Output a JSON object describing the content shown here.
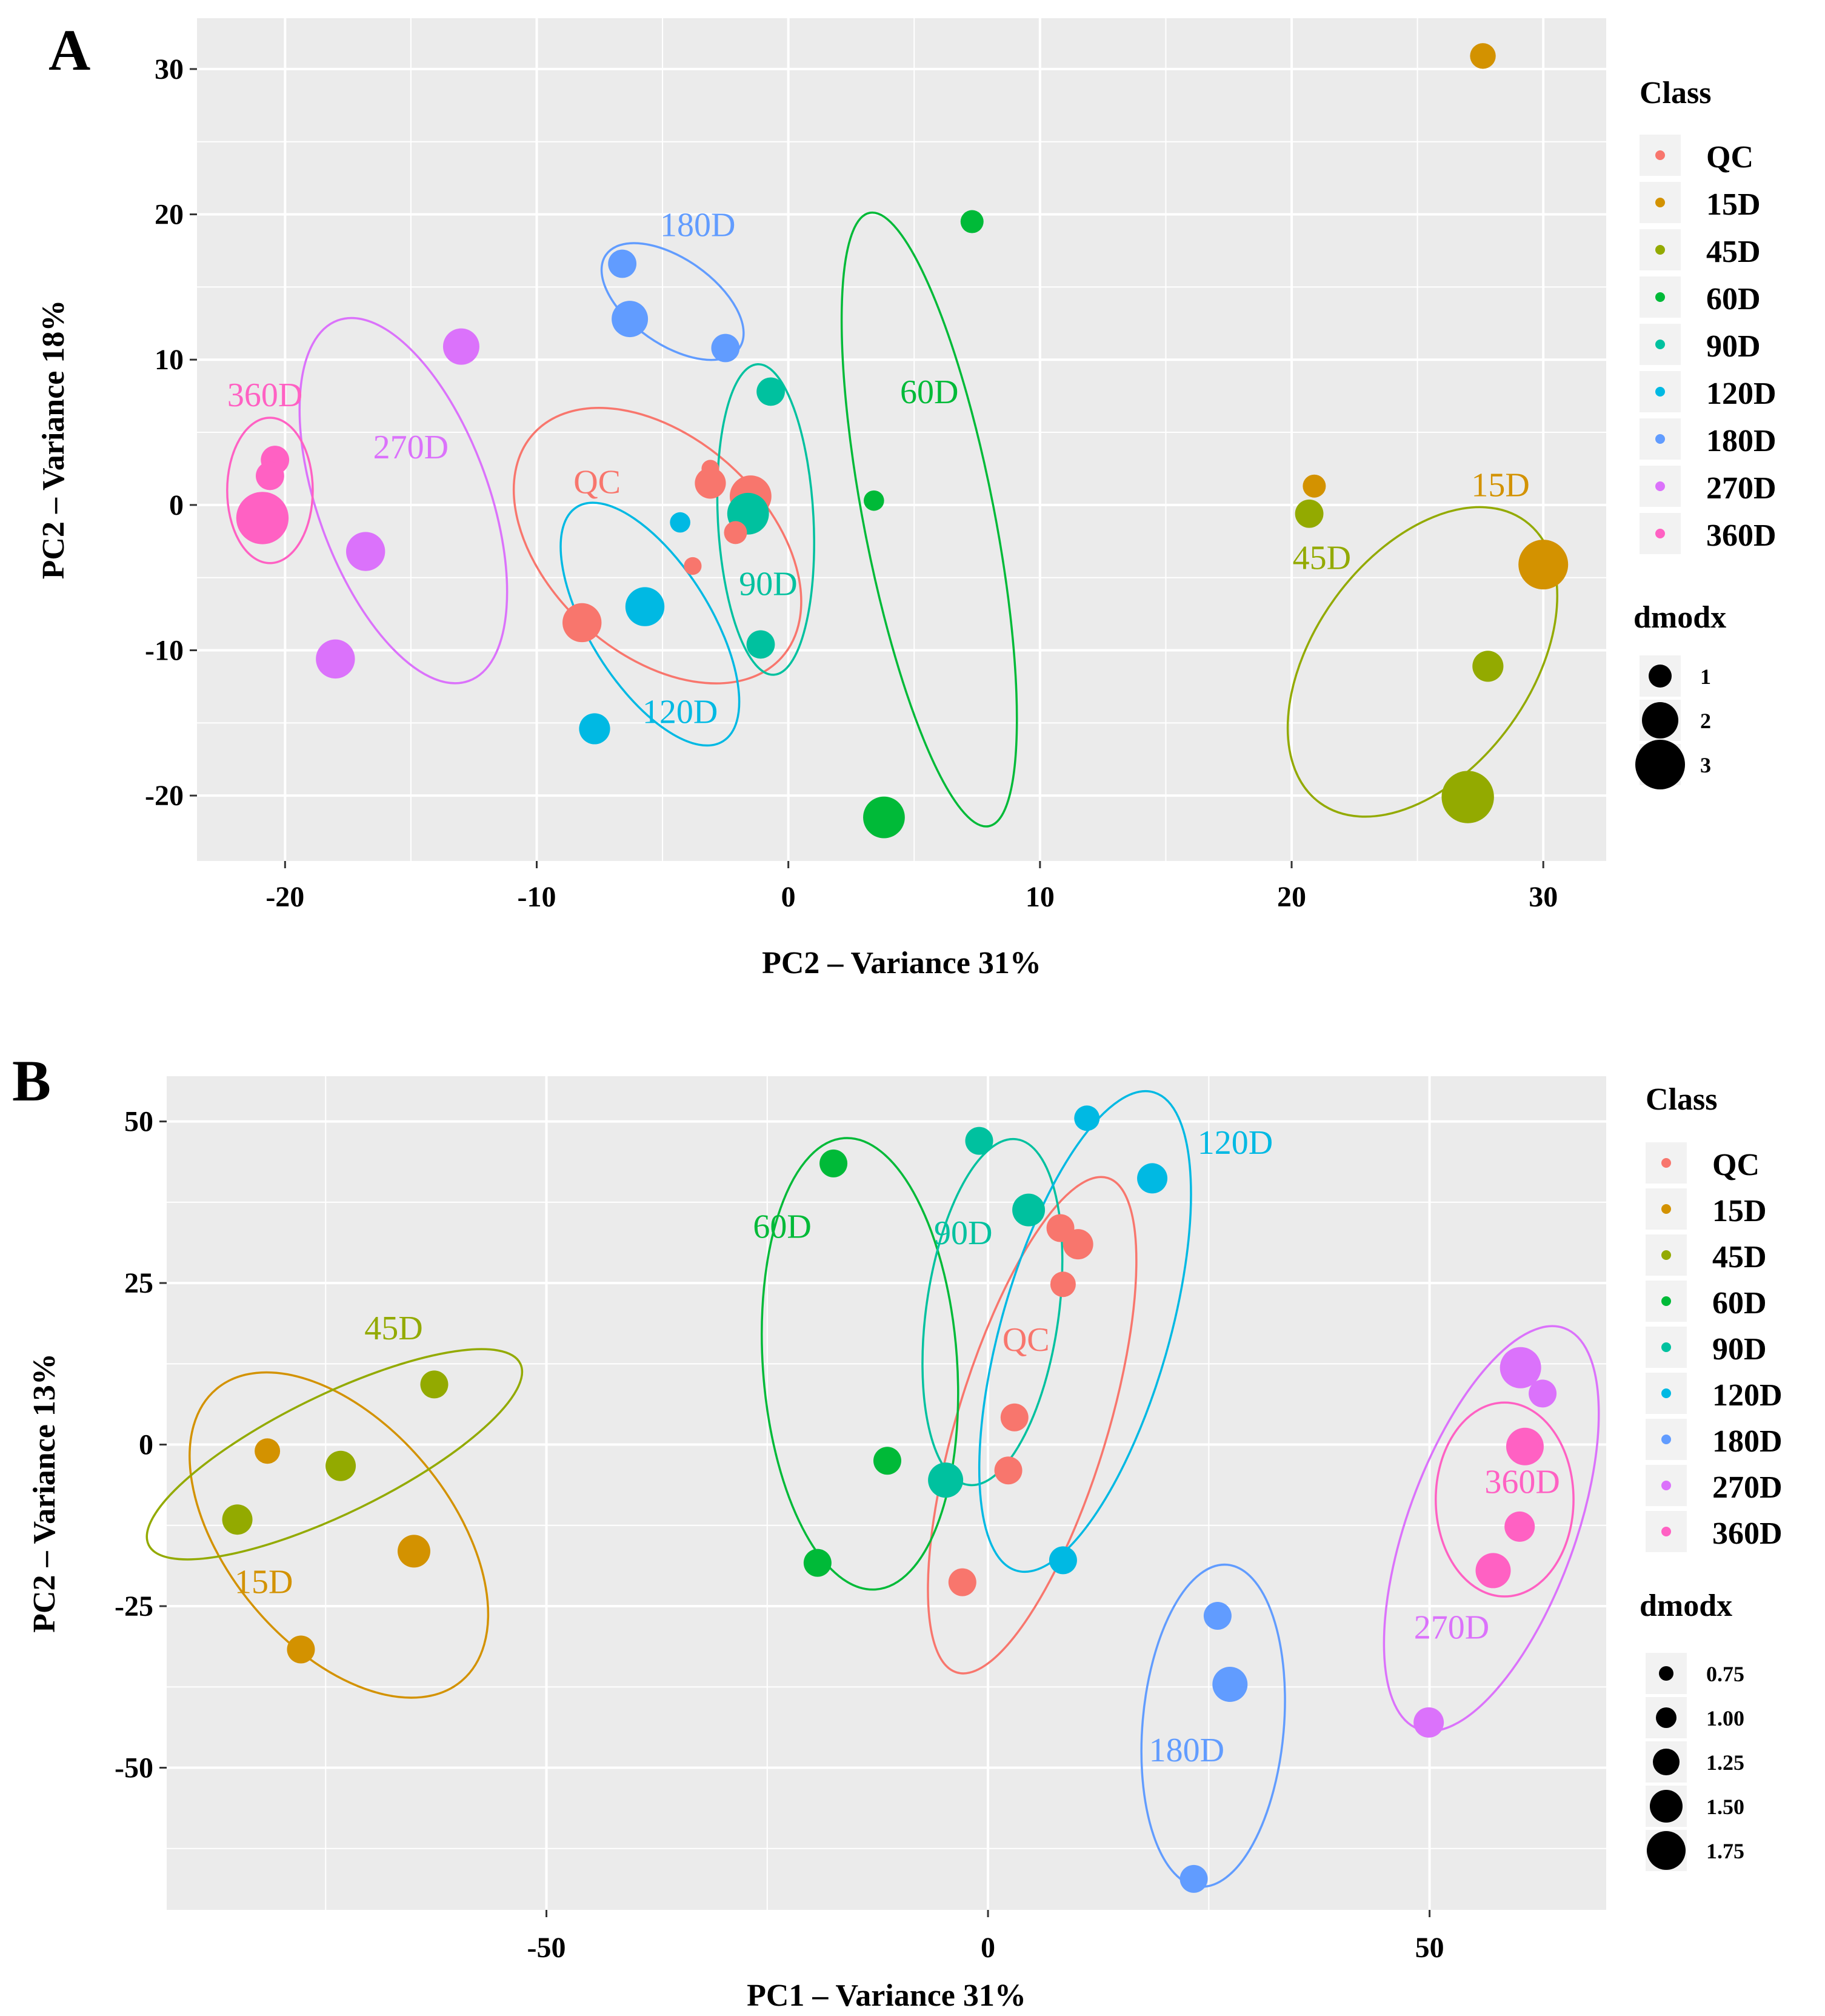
{
  "colors": {
    "QC": "#F8766D",
    "15D": "#D39200",
    "45D": "#93AA00",
    "60D": "#00BA38",
    "90D": "#00C19F",
    "120D": "#00B9E3",
    "180D": "#619CFF",
    "270D": "#DB72FB",
    "360D": "#FF61C3",
    "panel_bg": "#EBEBEB",
    "grid": "#FFFFFF"
  },
  "chart_data": [
    {
      "panel": "A",
      "type": "scatter",
      "xlabel": "PC2 – Variance 31%",
      "ylabel": "PC2 – Variance 18%",
      "xlim": [
        -23.5,
        32.5
      ],
      "ylim": [
        -24.5,
        33.5
      ],
      "xticks": [
        -20,
        -10,
        0,
        10,
        20,
        30
      ],
      "yticks": [
        -20,
        -10,
        0,
        10,
        20,
        30
      ],
      "xtick_labels": [
        "-20",
        "-10",
        "0",
        "10",
        "20",
        "30"
      ],
      "ytick_labels": [
        "-20",
        "-10",
        "0",
        "10",
        "20",
        "30"
      ],
      "legend_class_title": "Class",
      "legend_size_title": "dmodx",
      "legend_size_labels": [
        "1",
        "2",
        "3"
      ],
      "legend_size_values": [
        1,
        2,
        3
      ],
      "size_range": [
        0.3,
        3.2
      ],
      "classes": [
        "QC",
        "15D",
        "45D",
        "60D",
        "90D",
        "120D",
        "180D",
        "270D",
        "360D"
      ],
      "points": [
        {
          "class": "QC",
          "x": -3.1,
          "y": 2.5,
          "dmodx": 0.6
        },
        {
          "class": "QC",
          "x": -3.1,
          "y": 1.5,
          "dmodx": 1.6
        },
        {
          "class": "QC",
          "x": -1.5,
          "y": 0.6,
          "dmodx": 2.4
        },
        {
          "class": "QC",
          "x": -2.1,
          "y": -1.9,
          "dmodx": 1.0
        },
        {
          "class": "QC",
          "x": -3.8,
          "y": -4.2,
          "dmodx": 0.6
        },
        {
          "class": "QC",
          "x": -8.2,
          "y": -8.1,
          "dmodx": 2.2
        },
        {
          "class": "15D",
          "x": 27.6,
          "y": 30.9,
          "dmodx": 1.2
        },
        {
          "class": "15D",
          "x": 20.9,
          "y": 1.3,
          "dmodx": 1.0
        },
        {
          "class": "15D",
          "x": 30.0,
          "y": -4.1,
          "dmodx": 3.0
        },
        {
          "class": "45D",
          "x": 20.7,
          "y": -0.6,
          "dmodx": 1.4
        },
        {
          "class": "45D",
          "x": 27.8,
          "y": -11.1,
          "dmodx": 1.6
        },
        {
          "class": "45D",
          "x": 27.0,
          "y": -20.1,
          "dmodx": 3.2
        },
        {
          "class": "60D",
          "x": 7.3,
          "y": 19.5,
          "dmodx": 1.0
        },
        {
          "class": "60D",
          "x": 3.4,
          "y": 0.3,
          "dmodx": 0.8
        },
        {
          "class": "60D",
          "x": 3.8,
          "y": -21.5,
          "dmodx": 2.4
        },
        {
          "class": "90D",
          "x": -0.7,
          "y": 7.8,
          "dmodx": 1.4
        },
        {
          "class": "90D",
          "x": -1.6,
          "y": -0.6,
          "dmodx": 2.4
        },
        {
          "class": "90D",
          "x": -1.1,
          "y": -9.6,
          "dmodx": 1.4
        },
        {
          "class": "120D",
          "x": -4.3,
          "y": -1.2,
          "dmodx": 0.8
        },
        {
          "class": "120D",
          "x": -5.7,
          "y": -7.0,
          "dmodx": 2.2
        },
        {
          "class": "120D",
          "x": -7.7,
          "y": -15.4,
          "dmodx": 1.6
        },
        {
          "class": "180D",
          "x": -6.6,
          "y": 16.6,
          "dmodx": 1.4
        },
        {
          "class": "180D",
          "x": -6.3,
          "y": 12.8,
          "dmodx": 2.0
        },
        {
          "class": "180D",
          "x": -2.5,
          "y": 10.8,
          "dmodx": 1.4
        },
        {
          "class": "270D",
          "x": -13.0,
          "y": 10.9,
          "dmodx": 2.0
        },
        {
          "class": "270D",
          "x": -16.8,
          "y": -3.2,
          "dmodx": 2.2
        },
        {
          "class": "270D",
          "x": -18.0,
          "y": -10.6,
          "dmodx": 2.2
        },
        {
          "class": "360D",
          "x": -20.4,
          "y": 3.1,
          "dmodx": 1.4
        },
        {
          "class": "360D",
          "x": -20.6,
          "y": 2.0,
          "dmodx": 1.4
        },
        {
          "class": "360D",
          "x": -20.9,
          "y": -0.9,
          "dmodx": 3.2
        }
      ],
      "ellipses": [
        {
          "class": "QC",
          "label": "QC",
          "cx": -5.2,
          "cy": -2.8,
          "rx": 4.3,
          "ry": 11.5,
          "angle": -48,
          "label_x": -7.6,
          "label_y": 0.8
        },
        {
          "class": "15D",
          "label": "15D",
          "label_x": 28.3,
          "label_y": 0.6
        },
        {
          "class": "45D",
          "label": "45D",
          "cx": 25.2,
          "cy": -10.8,
          "rx": 4.3,
          "ry": 12.0,
          "angle": 36,
          "label_x": 21.2,
          "label_y": -4.4
        },
        {
          "class": "60D",
          "label": "60D",
          "cx": 5.6,
          "cy": -1.0,
          "rx": 2.6,
          "ry": 21.5,
          "angle": -11,
          "label_x": 5.6,
          "label_y": 7.0
        },
        {
          "class": "90D",
          "label": "90D",
          "cx": -0.9,
          "cy": -1.0,
          "rx": 1.9,
          "ry": 10.7,
          "angle": -3,
          "label_x": -0.8,
          "label_y": -6.2
        },
        {
          "class": "120D",
          "label": "120D",
          "cx": -5.5,
          "cy": -8.2,
          "rx": 2.4,
          "ry": 9.5,
          "angle": -32,
          "label_x": -4.3,
          "label_y": -15.0
        },
        {
          "class": "180D",
          "label": "180D",
          "cx": -4.6,
          "cy": 14.0,
          "rx": 1.7,
          "ry": 5.6,
          "angle": -55,
          "label_x": -3.6,
          "label_y": 18.5
        },
        {
          "class": "270D",
          "label": "270D",
          "cx": -15.3,
          "cy": 0.3,
          "rx": 3.4,
          "ry": 13.2,
          "angle": -20,
          "label_x": -15.0,
          "label_y": 3.2
        },
        {
          "class": "360D",
          "label": "360D",
          "cx": -20.6,
          "cy": 1.0,
          "rx": 1.7,
          "ry": 5.0,
          "angle": 0,
          "label_x": -20.8,
          "label_y": 6.8
        }
      ]
    },
    {
      "panel": "B",
      "type": "scatter",
      "xlabel": "PC1 – Variance 31%",
      "ylabel": "PC2 – Variance 13%",
      "xlim": [
        -93,
        70
      ],
      "ylim": [
        -72,
        57
      ],
      "xticks": [
        -50,
        0,
        50
      ],
      "yticks": [
        -50,
        -25,
        0,
        25,
        50
      ],
      "xtick_labels": [
        "-50",
        "0",
        "50"
      ],
      "ytick_labels": [
        "-50",
        "-25",
        "0",
        "25",
        "50"
      ],
      "legend_class_title": "Class",
      "legend_size_title": "dmodx",
      "legend_size_labels": [
        "0.75",
        "1.00",
        "1.25",
        "1.50",
        "1.75"
      ],
      "legend_size_values": [
        0.75,
        1.0,
        1.25,
        1.5,
        1.75
      ],
      "size_range": [
        0.6,
        1.85
      ],
      "classes": [
        "QC",
        "15D",
        "45D",
        "60D",
        "90D",
        "120D",
        "180D",
        "270D",
        "360D"
      ],
      "points": [
        {
          "class": "QC",
          "x": 8.2,
          "y": 33.5,
          "dmodx": 1.3
        },
        {
          "class": "QC",
          "x": 10.2,
          "y": 31.0,
          "dmodx": 1.4
        },
        {
          "class": "QC",
          "x": 8.5,
          "y": 24.8,
          "dmodx": 1.2
        },
        {
          "class": "QC",
          "x": 3.0,
          "y": 4.2,
          "dmodx": 1.3
        },
        {
          "class": "QC",
          "x": 2.3,
          "y": -4.0,
          "dmodx": 1.3
        },
        {
          "class": "QC",
          "x": -2.9,
          "y": -21.3,
          "dmodx": 1.3
        },
        {
          "class": "15D",
          "x": -81.6,
          "y": -1.0,
          "dmodx": 1.2
        },
        {
          "class": "15D",
          "x": -65.0,
          "y": -16.5,
          "dmodx": 1.5
        },
        {
          "class": "15D",
          "x": -77.8,
          "y": -31.7,
          "dmodx": 1.3
        },
        {
          "class": "45D",
          "x": -62.7,
          "y": 9.3,
          "dmodx": 1.3
        },
        {
          "class": "45D",
          "x": -73.3,
          "y": -3.3,
          "dmodx": 1.4
        },
        {
          "class": "45D",
          "x": -85.0,
          "y": -11.6,
          "dmodx": 1.4
        },
        {
          "class": "60D",
          "x": -17.5,
          "y": 43.5,
          "dmodx": 1.3
        },
        {
          "class": "60D",
          "x": -11.4,
          "y": -2.5,
          "dmodx": 1.3
        },
        {
          "class": "60D",
          "x": -19.3,
          "y": -18.3,
          "dmodx": 1.3
        },
        {
          "class": "90D",
          "x": -1.0,
          "y": 47.0,
          "dmodx": 1.3
        },
        {
          "class": "90D",
          "x": 4.6,
          "y": 36.3,
          "dmodx": 1.5
        },
        {
          "class": "90D",
          "x": -4.8,
          "y": -5.5,
          "dmodx": 1.6
        },
        {
          "class": "120D",
          "x": 11.2,
          "y": 50.5,
          "dmodx": 1.2
        },
        {
          "class": "120D",
          "x": 18.6,
          "y": 41.2,
          "dmodx": 1.4
        },
        {
          "class": "120D",
          "x": 8.5,
          "y": -17.9,
          "dmodx": 1.3
        },
        {
          "class": "180D",
          "x": 26.0,
          "y": -26.5,
          "dmodx": 1.3
        },
        {
          "class": "180D",
          "x": 27.4,
          "y": -37.1,
          "dmodx": 1.6
        },
        {
          "class": "180D",
          "x": 23.3,
          "y": -67.2,
          "dmodx": 1.3
        },
        {
          "class": "270D",
          "x": 60.3,
          "y": 11.9,
          "dmodx": 1.85
        },
        {
          "class": "270D",
          "x": 62.8,
          "y": 7.9,
          "dmodx": 1.3
        },
        {
          "class": "270D",
          "x": 49.9,
          "y": -43.0,
          "dmodx": 1.4
        },
        {
          "class": "360D",
          "x": 60.8,
          "y": -0.3,
          "dmodx": 1.7
        },
        {
          "class": "360D",
          "x": 60.2,
          "y": -12.7,
          "dmodx": 1.4
        },
        {
          "class": "360D",
          "x": 57.2,
          "y": -19.5,
          "dmodx": 1.6
        }
      ],
      "ellipses": [
        {
          "class": "QC",
          "label": "QC",
          "cx": 5.0,
          "cy": 3.0,
          "rx": 8.5,
          "ry": 40.0,
          "angle": 17,
          "label_x": 4.3,
          "label_y": 14.5
        },
        {
          "class": "15D",
          "label": "15D",
          "cx": -73.5,
          "cy": -14.0,
          "rx": 12.6,
          "ry": 29.5,
          "angle": -40,
          "label_x": -82.0,
          "label_y": -23.0
        },
        {
          "class": "45D",
          "label": "45D",
          "cx": -74.0,
          "cy": -1.5,
          "rx": 6.7,
          "ry": 32.0,
          "angle": 64,
          "label_x": -67.3,
          "label_y": 16.3
        },
        {
          "class": "60D",
          "label": "60D",
          "cx": -14.5,
          "cy": 12.5,
          "rx": 11.0,
          "ry": 35.0,
          "angle": -4,
          "label_x": -23.3,
          "label_y": 32.0
        },
        {
          "class": "90D",
          "label": "90D",
          "cx": 0.5,
          "cy": 20.5,
          "rx": 7.5,
          "ry": 27.0,
          "angle": 8,
          "label_x": -2.8,
          "label_y": 31.0
        },
        {
          "class": "120D",
          "label": "120D",
          "cx": 11.0,
          "cy": 17.5,
          "rx": 9.5,
          "ry": 38.5,
          "angle": 16,
          "label_x": 28.0,
          "label_y": 45.0
        },
        {
          "class": "180D",
          "label": "180D",
          "cx": 25.5,
          "cy": -43.5,
          "rx": 8.0,
          "ry": 25.0,
          "angle": 5,
          "label_x": 22.5,
          "label_y": -49.0
        },
        {
          "class": "270D",
          "label": "270D",
          "cx": 57.0,
          "cy": -13.0,
          "rx": 9.5,
          "ry": 33.0,
          "angle": 20,
          "label_x": 52.5,
          "label_y": -30.0
        },
        {
          "class": "360D",
          "label": "360D",
          "cx": 58.5,
          "cy": -8.5,
          "rx": 7.8,
          "ry": 15.0,
          "angle": 0,
          "label_x": 60.5,
          "label_y": -7.5
        }
      ]
    }
  ]
}
